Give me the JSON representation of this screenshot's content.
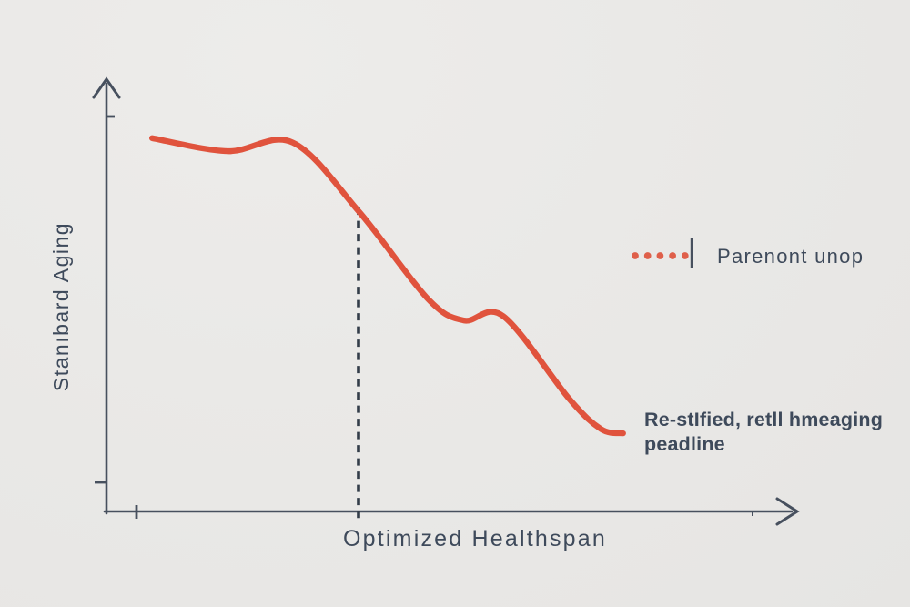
{
  "colors": {
    "background": "#e9e8e6",
    "curve": "#e0533d",
    "legend_dots": "#df5f4a",
    "axis": "#47505e",
    "dashed_line": "#333d49",
    "text": "#3e4a5b"
  },
  "chart_data": {
    "type": "line",
    "title": "",
    "xlabel": "Optimized Healthspan",
    "ylabel": "Stanıbard Aging",
    "xlim": [
      0,
      1
    ],
    "ylim": [
      0,
      1
    ],
    "grid": false,
    "tick_labels": "none",
    "axis_arrows": true,
    "legend_position": "right-center",
    "series": [
      {
        "name": "aging-decline-curve",
        "style": "solid",
        "x": [
          0.066,
          0.175,
          0.269,
          0.365,
          0.464,
          0.516,
          0.573,
          0.668,
          0.714,
          0.746
        ],
        "y": [
          0.86,
          0.83,
          0.85,
          0.69,
          0.49,
          0.44,
          0.45,
          0.26,
          0.19,
          0.18
        ]
      }
    ],
    "marker_line": {
      "x": 0.364,
      "y_top": 0.7,
      "y_bottom": -0.015,
      "style": "dashed"
    },
    "legend": {
      "swatch": "dotted-line",
      "dot_count": 5,
      "label": "Parenont unop"
    },
    "annotation": {
      "line1": "Re-stIfied, retll hmeaging",
      "line2": "peadline"
    }
  }
}
